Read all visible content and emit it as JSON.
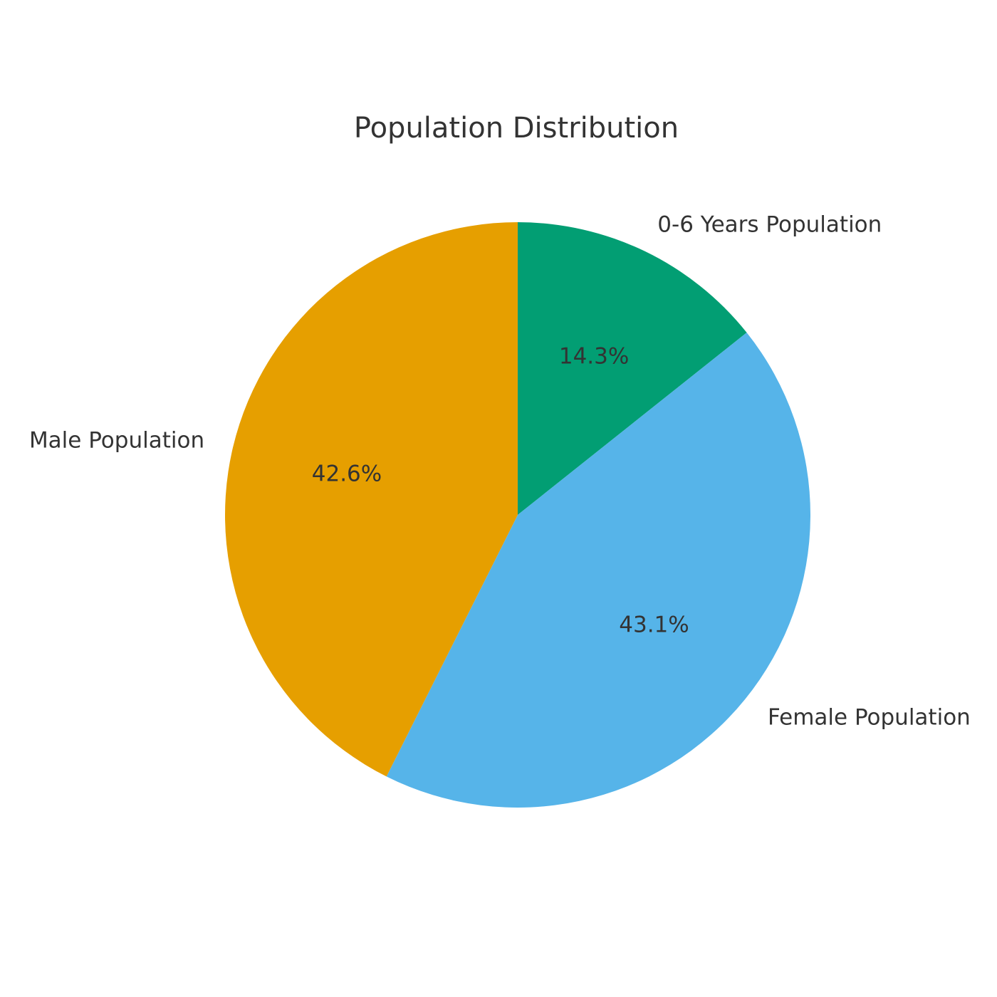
{
  "title": "Population Distribution",
  "chart_data": {
    "type": "pie",
    "title": "Population Distribution",
    "slices": [
      {
        "label": "0-6 Years Population",
        "value": 14.3,
        "pct_label": "14.3%",
        "color": "#029E73"
      },
      {
        "label": "Female Population",
        "value": 43.1,
        "pct_label": "43.1%",
        "color": "#56B4E9"
      },
      {
        "label": "Male Population",
        "value": 42.6,
        "pct_label": "42.6%",
        "color": "#E69F00"
      }
    ],
    "start_angle": "top (12 o'clock)",
    "direction": "clockwise",
    "legend": "none",
    "background": "#ffffff",
    "text_color": "#333333",
    "pct_radius_frac": 0.6,
    "label_radius_frac": 1.1
  }
}
